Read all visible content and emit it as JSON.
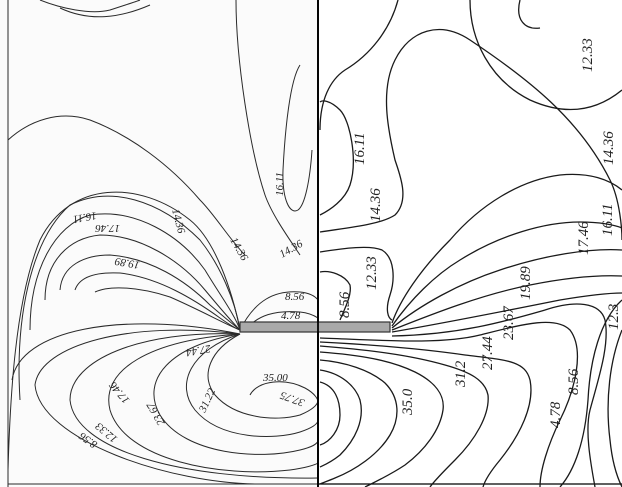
{
  "left_panel": {
    "labels": [
      "16.11",
      "14.36",
      "14.36",
      "16.11",
      "14.36",
      "17.46",
      "19.89",
      "8.56",
      "4.78",
      "27.44",
      "35.00",
      "37.75",
      "31.22",
      "23.67",
      "17.46",
      "12.33",
      "8.56"
    ]
  },
  "right_panel": {
    "labels": [
      "12.33",
      "16.11",
      "14.36",
      "14.36",
      "12.33",
      "8.56",
      "17.46",
      "16.11",
      "19.89",
      "23.67",
      "27.44",
      "31.2",
      "35.0",
      "8.56",
      "4.78",
      "12.3"
    ]
  },
  "colors": {
    "line": "#1a1a1a",
    "plate": "#a9a9a9",
    "frame": "#000000"
  }
}
